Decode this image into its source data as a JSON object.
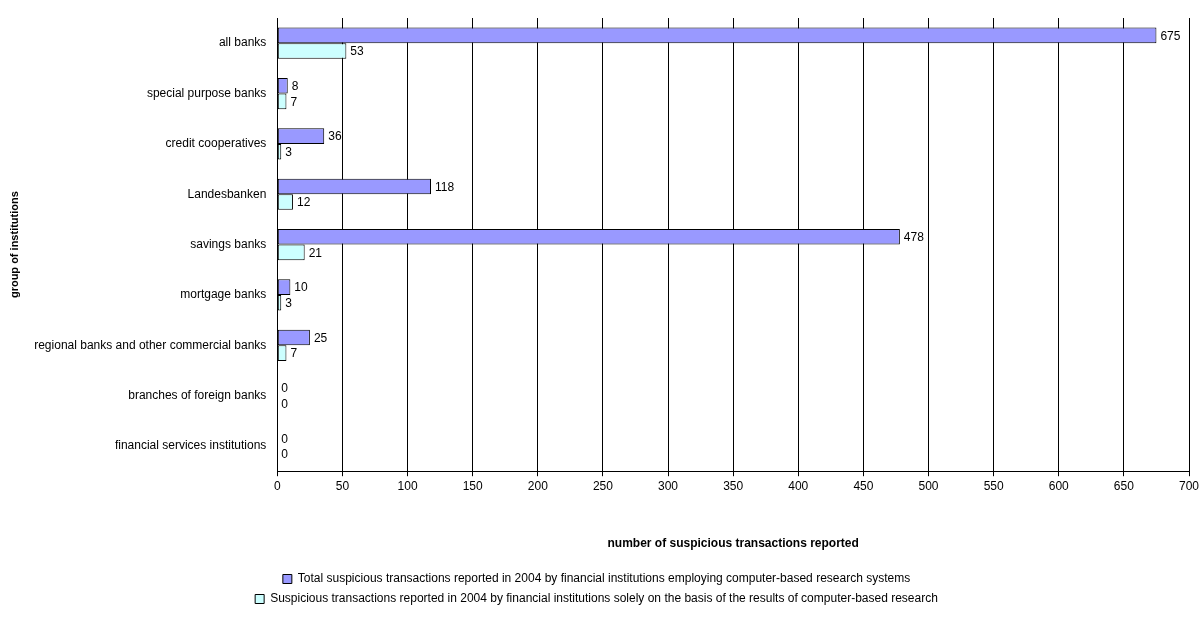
{
  "chart_data": {
    "type": "bar",
    "orientation": "horizontal",
    "xlabel": "number of suspicious transactions reported",
    "ylabel": "group of institutions",
    "categories": [
      "all banks",
      "special purpose banks",
      "credit cooperatives",
      "Landesbanken",
      "savings banks",
      "mortgage banks",
      "regional banks and other commercial banks",
      "branches of foreign banks",
      "financial services institutions"
    ],
    "series": [
      {
        "name": "Total suspicious transactions reported in 2004 by financial institutions employing computer-based research systems",
        "color": "#9999ff",
        "values": [
          675,
          8,
          36,
          118,
          478,
          10,
          25,
          0,
          0
        ]
      },
      {
        "name": "Suspicious transactions reported in 2004 by financial institutions solely on the basis of the results of computer-based research",
        "color": "#ccffff",
        "values": [
          53,
          7,
          3,
          12,
          21,
          3,
          7,
          0,
          0
        ]
      }
    ],
    "xlim": [
      0,
      700
    ],
    "xticks": [
      0,
      50,
      100,
      150,
      200,
      250,
      300,
      350,
      400,
      450,
      500,
      550,
      600,
      650,
      700
    ],
    "grid": "x",
    "legend": "bottom",
    "data_labels": true
  }
}
